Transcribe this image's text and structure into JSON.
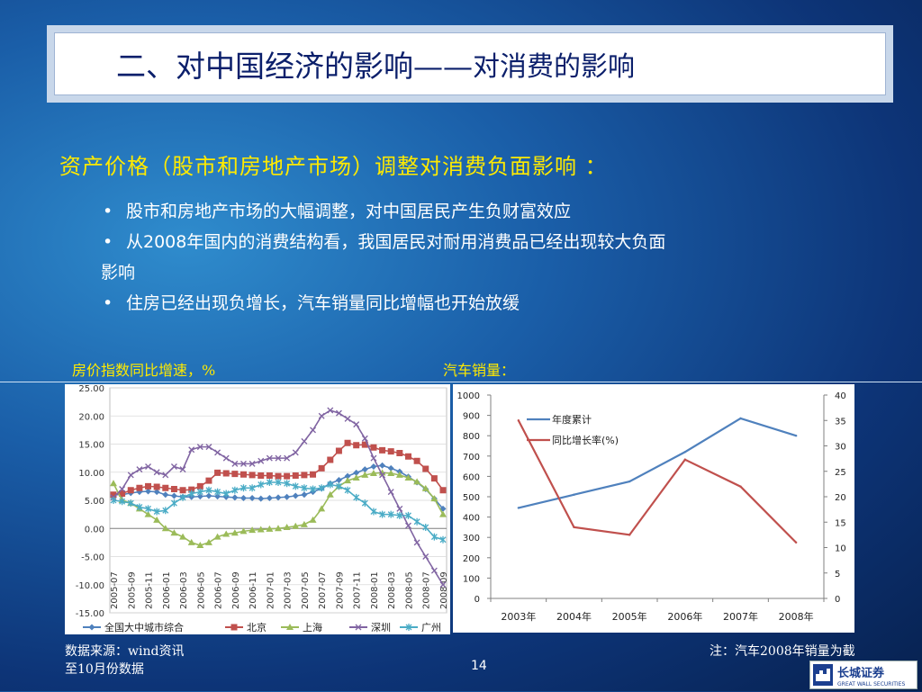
{
  "title": {
    "main": "二、对中国经济的影响——",
    "sub": "对消费的影响"
  },
  "heading": "资产价格（股市和房地产市场）调整对消费负面影响 ：",
  "bullets": [
    "股市和房地产市场的大幅调整，对中国居民产生负财富效应",
    "从2008年国内的消费结构看，我国居民对耐用消费品已经出现较大负面",
    "影响",
    "住房已经出现负增长，汽车销量同比增幅也开始放缓"
  ],
  "bullet_glyph": "•",
  "labels": {
    "left_chart": "房价指数同比增速，%",
    "right_chart": "汽车销量："
  },
  "footer": {
    "source_line1": "数据来源：wind资讯",
    "source_line2": "至10月份数据",
    "note": "注：汽车2008年销量为截",
    "page": "14"
  },
  "logo": {
    "cn": "长城证券",
    "en": "GREAT WALL SECURITIES",
    "icon": "great-wall-logo-icon"
  },
  "colors": {
    "title_text": "#0b1f6b",
    "heading": "#ffea00",
    "blue": "#4f81bd",
    "red": "#c0504d",
    "green": "#9bbb59",
    "purple": "#8064a2",
    "cyan": "#4bacc6"
  },
  "chart_data": [
    {
      "type": "line",
      "ylim": [
        -15,
        25
      ],
      "yticks": [
        "25.00",
        "20.00",
        "15.00",
        "10.00",
        "5.00",
        "0.00",
        "-5.00",
        "-10.00",
        "-15.00"
      ],
      "categories": [
        "2005-07",
        "2005-08",
        "2005-09",
        "2005-10",
        "2005-11",
        "2005-12",
        "2006-01",
        "2006-02",
        "2006-03",
        "2006-04",
        "2006-05",
        "2006-06",
        "2006-07",
        "2006-08",
        "2006-09",
        "2006-10",
        "2006-11",
        "2006-12",
        "2007-01",
        "2007-02",
        "2007-03",
        "2007-04",
        "2007-05",
        "2007-06",
        "2007-07",
        "2007-08",
        "2007-09",
        "2007-10",
        "2007-11",
        "2007-12",
        "2008-01",
        "2008-02",
        "2008-03",
        "2008-04",
        "2008-05",
        "2008-06",
        "2008-07",
        "2008-08",
        "2008-09"
      ],
      "tick_labels": [
        "2005-07",
        "2005-09",
        "2005-11",
        "2006-01",
        "2006-03",
        "2006-05",
        "2006-07",
        "2006-09",
        "2006-11",
        "2007-01",
        "2007-03",
        "2007-05",
        "2007-07",
        "2007-09",
        "2007-11",
        "2008-01",
        "2008-03",
        "2008-05",
        "2008-07",
        "2008-09"
      ],
      "series": [
        {
          "name": "全国大中城市综合",
          "color": "#4f81bd",
          "values": [
            6.0,
            6.0,
            6.3,
            6.5,
            6.6,
            6.5,
            6.0,
            5.8,
            5.6,
            5.6,
            5.7,
            5.8,
            5.7,
            5.6,
            5.5,
            5.4,
            5.4,
            5.3,
            5.4,
            5.5,
            5.6,
            5.8,
            6.0,
            6.5,
            7.1,
            8.0,
            8.6,
            9.3,
            9.9,
            10.5,
            11.0,
            11.2,
            10.7,
            10.1,
            9.2,
            8.2,
            7.0,
            5.3,
            3.5
          ]
        },
        {
          "name": "北京",
          "color": "#c0504d",
          "values": [
            6.0,
            6.2,
            6.8,
            7.2,
            7.5,
            7.4,
            7.2,
            7.0,
            6.8,
            6.9,
            7.5,
            8.5,
            9.9,
            9.8,
            9.7,
            9.6,
            9.5,
            9.4,
            9.4,
            9.3,
            9.3,
            9.4,
            9.5,
            9.6,
            10.7,
            12.2,
            13.8,
            15.2,
            14.8,
            14.9,
            14.4,
            13.9,
            13.7,
            13.4,
            12.8,
            12.0,
            10.6,
            8.9,
            6.8
          ]
        },
        {
          "name": "上海",
          "color": "#9bbb59",
          "values": [
            8.0,
            5.0,
            4.5,
            3.5,
            2.5,
            1.5,
            0.0,
            -0.8,
            -1.5,
            -2.5,
            -3.0,
            -2.5,
            -1.5,
            -1.0,
            -0.8,
            -0.5,
            -0.3,
            -0.2,
            -0.1,
            0.0,
            0.2,
            0.4,
            0.7,
            1.5,
            3.5,
            6.0,
            7.5,
            8.5,
            9.0,
            9.5,
            9.8,
            9.9,
            9.8,
            9.5,
            9.0,
            8.3,
            7.1,
            5.3,
            2.5
          ]
        },
        {
          "name": "深圳",
          "color": "#8064a2",
          "values": [
            5.5,
            7.0,
            9.5,
            10.5,
            11.0,
            10.0,
            9.5,
            11.0,
            10.5,
            14.0,
            14.5,
            14.5,
            13.5,
            12.5,
            11.5,
            11.5,
            11.5,
            12.0,
            12.5,
            12.5,
            12.5,
            13.5,
            15.5,
            17.5,
            20.0,
            21.0,
            20.5,
            19.5,
            18.5,
            16.0,
            12.5,
            9.5,
            6.5,
            3.5,
            0.5,
            -2.5,
            -5.0,
            -7.5,
            -10.0
          ]
        },
        {
          "name": "广州",
          "color": "#4bacc6",
          "values": [
            5.0,
            4.8,
            4.5,
            3.8,
            3.5,
            3.0,
            3.2,
            4.5,
            5.5,
            6.2,
            6.5,
            6.8,
            6.5,
            6.2,
            6.8,
            7.2,
            7.2,
            7.8,
            8.2,
            8.2,
            8.0,
            7.5,
            7.2,
            7.0,
            7.2,
            7.8,
            7.5,
            6.8,
            5.5,
            4.5,
            3.0,
            2.5,
            2.5,
            2.3,
            2.3,
            1.2,
            0.2,
            -1.5,
            -2.0
          ]
        }
      ]
    },
    {
      "type": "line",
      "categories": [
        "2003年",
        "2004年",
        "2005年",
        "2006年",
        "2007年",
        "2008年"
      ],
      "ylim_left": [
        0,
        1000
      ],
      "ylim_right": [
        0,
        40
      ],
      "yticks_left": [
        "0",
        "100",
        "200",
        "300",
        "400",
        "500",
        "600",
        "700",
        "800",
        "900",
        "1000"
      ],
      "yticks_right": [
        "0",
        "5",
        "10",
        "15",
        "20",
        "25",
        "30",
        "35",
        "40"
      ],
      "legend_position": "top-left",
      "series": [
        {
          "name": "年度累计",
          "axis": "left",
          "color": "#4f81bd",
          "values": [
            445,
            510,
            575,
            720,
            885,
            800
          ]
        },
        {
          "name": "同比增长率(%)",
          "axis": "right",
          "color": "#c0504d",
          "values": [
            35,
            14,
            12.5,
            27.3,
            22,
            11
          ]
        }
      ]
    }
  ]
}
